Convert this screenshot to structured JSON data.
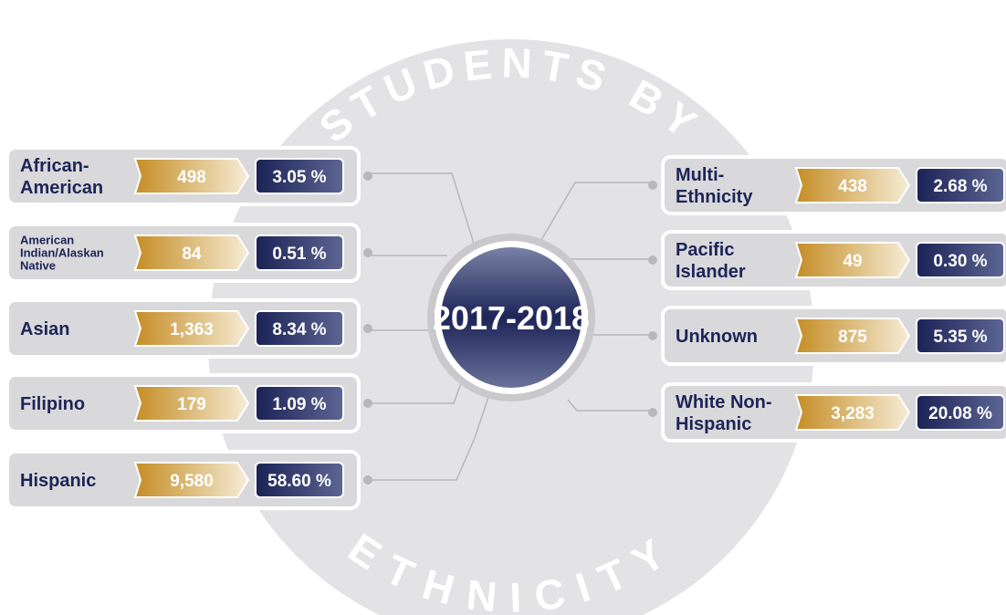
{
  "title": {
    "top": "STUDENTS BY",
    "bottom": "ETHNICITY"
  },
  "center": "2017-2018",
  "left": [
    {
      "label": [
        "African-",
        "American"
      ],
      "count": "498",
      "percent": "3.05 %"
    },
    {
      "label": [
        "American",
        "Indian/Alaskan",
        "Native"
      ],
      "count": "84",
      "percent": "0.51 %"
    },
    {
      "label": [
        "Asian"
      ],
      "count": "1,363",
      "percent": "8.34 %"
    },
    {
      "label": [
        "Filipino"
      ],
      "count": "179",
      "percent": "1.09 %"
    },
    {
      "label": [
        "Hispanic"
      ],
      "count": "9,580",
      "percent": "58.60 %"
    }
  ],
  "right": [
    {
      "label": [
        "Multi-",
        "Ethnicity"
      ],
      "count": "438",
      "percent": "2.68 %"
    },
    {
      "label": [
        "Pacific",
        "Islander"
      ],
      "count": "49",
      "percent": "0.30 %"
    },
    {
      "label": [
        "Unknown"
      ],
      "count": "875",
      "percent": "5.35 %"
    },
    {
      "label": [
        "White Non-",
        "Hispanic"
      ],
      "count": "3,283",
      "percent": "20.08 %"
    }
  ]
}
